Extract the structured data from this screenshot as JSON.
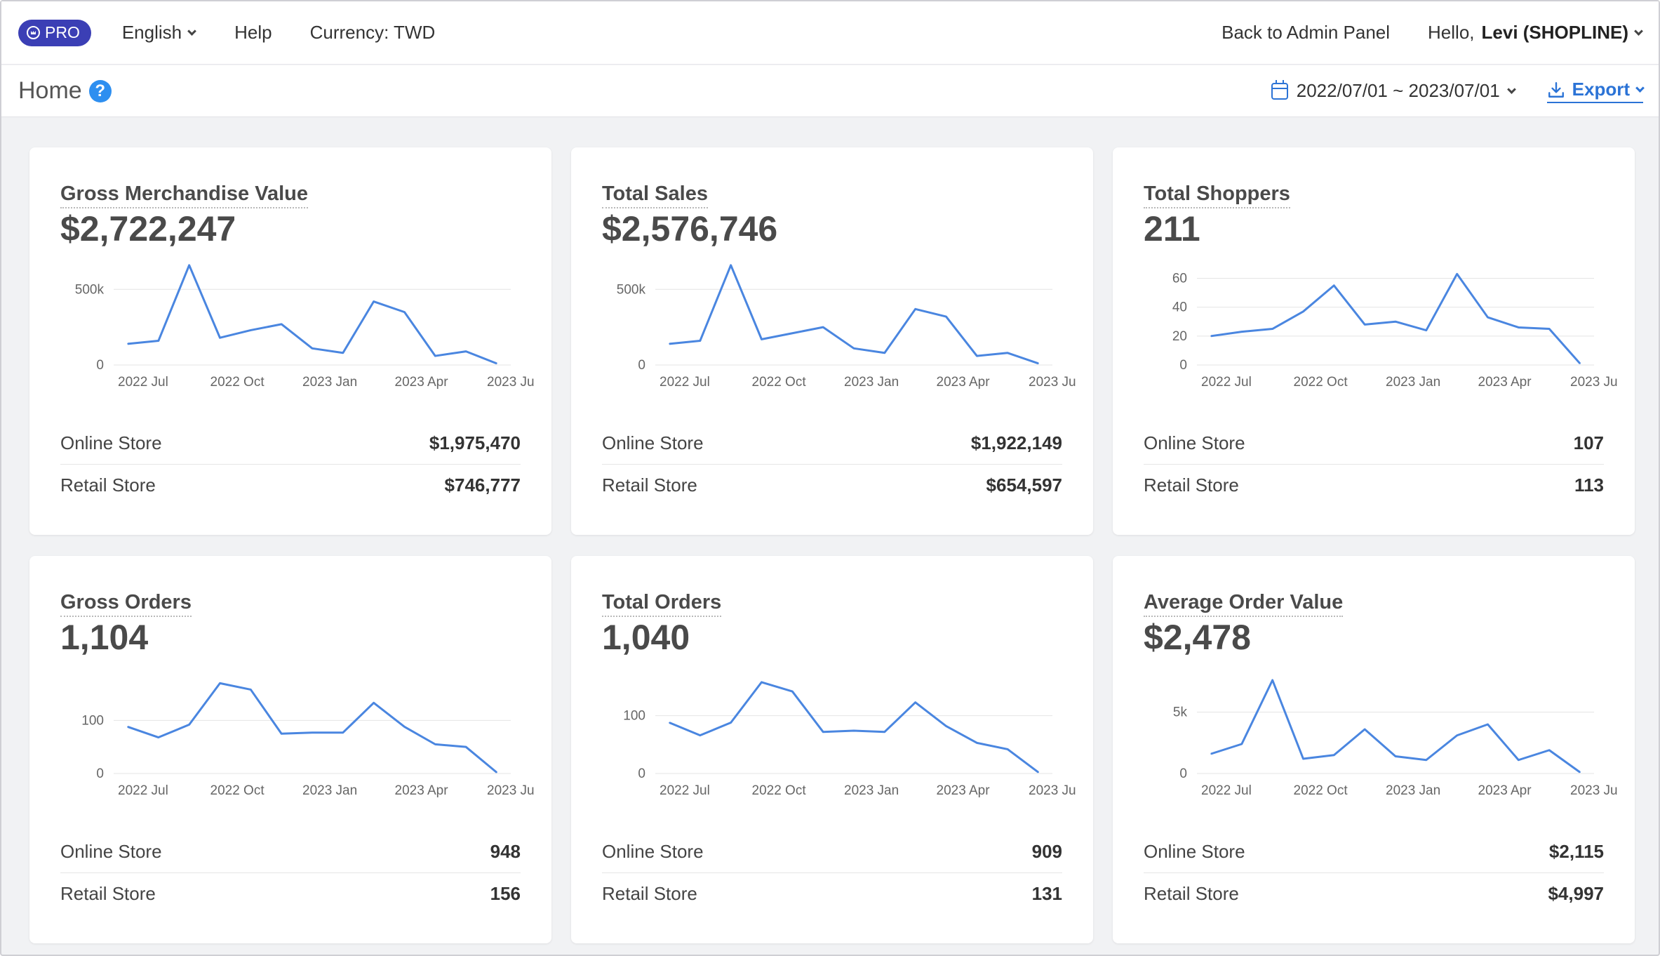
{
  "topbar": {
    "pro_label": "PRO",
    "language": "English",
    "help": "Help",
    "currency": "Currency: TWD",
    "back_admin": "Back to Admin Panel",
    "hello": "Hello,",
    "user": "Levi (SHOPLINE)"
  },
  "subbar": {
    "title": "Home",
    "help_glyph": "?",
    "date_range": "2022/07/01 ~ 2023/07/01",
    "export": "Export"
  },
  "colors": {
    "accent": "#2b73d6",
    "line": "#4a86e0",
    "pro": "#3b3fb5"
  },
  "x_ticks": [
    "2022 Jul",
    "2022 Oct",
    "2023 Jan",
    "2023 Apr",
    "2023 Ju"
  ],
  "cards": [
    {
      "title": "Gross Merchandise Value",
      "value": "$2,722,247",
      "rows": [
        {
          "label": "Online Store",
          "value": "$1,975,470"
        },
        {
          "label": "Retail Store",
          "value": "$746,777"
        }
      ],
      "chart_data": {
        "type": "line",
        "x": [
          "2022 Jul",
          "2022 Aug",
          "2022 Sep",
          "2022 Oct",
          "2022 Nov",
          "2022 Dec",
          "2023 Jan",
          "2023 Feb",
          "2023 Mar",
          "2023 Apr",
          "2023 May",
          "2023 Jun",
          "2023 Jul"
        ],
        "values": [
          140000,
          160000,
          660000,
          180000,
          230000,
          270000,
          110000,
          80000,
          420000,
          350000,
          60000,
          90000,
          10000
        ],
        "ylim": [
          0,
          650000
        ],
        "yticks": [
          {
            "v": 0,
            "t": "0"
          },
          {
            "v": 500000,
            "t": "500k"
          }
        ]
      }
    },
    {
      "title": "Total Sales",
      "value": "$2,576,746",
      "rows": [
        {
          "label": "Online Store",
          "value": "$1,922,149"
        },
        {
          "label": "Retail Store",
          "value": "$654,597"
        }
      ],
      "chart_data": {
        "type": "line",
        "x": [
          "2022 Jul",
          "2022 Aug",
          "2022 Sep",
          "2022 Oct",
          "2022 Nov",
          "2022 Dec",
          "2023 Jan",
          "2023 Feb",
          "2023 Mar",
          "2023 Apr",
          "2023 May",
          "2023 Jun",
          "2023 Jul"
        ],
        "values": [
          140000,
          160000,
          660000,
          170000,
          210000,
          250000,
          110000,
          80000,
          370000,
          320000,
          60000,
          80000,
          10000
        ],
        "ylim": [
          0,
          650000
        ],
        "yticks": [
          {
            "v": 0,
            "t": "0"
          },
          {
            "v": 500000,
            "t": "500k"
          }
        ]
      }
    },
    {
      "title": "Total Shoppers",
      "value": "211",
      "rows": [
        {
          "label": "Online Store",
          "value": "107"
        },
        {
          "label": "Retail Store",
          "value": "113"
        }
      ],
      "chart_data": {
        "type": "line",
        "x": [
          "2022 Jul",
          "2022 Aug",
          "2022 Sep",
          "2022 Oct",
          "2022 Nov",
          "2022 Dec",
          "2023 Jan",
          "2023 Feb",
          "2023 Mar",
          "2023 Apr",
          "2023 May",
          "2023 Jun",
          "2023 Jul"
        ],
        "values": [
          20,
          23,
          25,
          37,
          55,
          28,
          30,
          24,
          63,
          33,
          26,
          25,
          1
        ],
        "ylim": [
          0,
          68
        ],
        "yticks": [
          {
            "v": 0,
            "t": "0"
          },
          {
            "v": 20,
            "t": "20"
          },
          {
            "v": 40,
            "t": "40"
          },
          {
            "v": 60,
            "t": "60"
          }
        ]
      }
    },
    {
      "title": "Gross Orders",
      "value": "1,104",
      "rows": [
        {
          "label": "Online Store",
          "value": "948"
        },
        {
          "label": "Retail Store",
          "value": "156"
        }
      ],
      "chart_data": {
        "type": "line",
        "x": [
          "2022 Jul",
          "2022 Aug",
          "2022 Sep",
          "2022 Oct",
          "2022 Nov",
          "2022 Dec",
          "2023 Jan",
          "2023 Feb",
          "2023 Mar",
          "2023 Apr",
          "2023 May",
          "2023 Jun",
          "2023 Jul"
        ],
        "values": [
          88,
          68,
          92,
          170,
          158,
          75,
          77,
          77,
          133,
          88,
          55,
          50,
          2
        ],
        "ylim": [
          0,
          185
        ],
        "yticks": [
          {
            "v": 0,
            "t": "0"
          },
          {
            "v": 100,
            "t": "100"
          }
        ]
      }
    },
    {
      "title": "Total Orders",
      "value": "1,040",
      "rows": [
        {
          "label": "Online Store",
          "value": "909"
        },
        {
          "label": "Retail Store",
          "value": "131"
        }
      ],
      "chart_data": {
        "type": "line",
        "x": [
          "2022 Jul",
          "2022 Aug",
          "2022 Sep",
          "2022 Oct",
          "2022 Nov",
          "2022 Dec",
          "2023 Jan",
          "2023 Feb",
          "2023 Mar",
          "2023 Apr",
          "2023 May",
          "2023 Jun",
          "2023 Jul"
        ],
        "values": [
          88,
          66,
          88,
          158,
          142,
          72,
          74,
          72,
          123,
          82,
          53,
          42,
          2
        ],
        "ylim": [
          0,
          170
        ],
        "yticks": [
          {
            "v": 0,
            "t": "0"
          },
          {
            "v": 100,
            "t": "100"
          }
        ]
      }
    },
    {
      "title": "Average Order Value",
      "value": "$2,478",
      "rows": [
        {
          "label": "Online Store",
          "value": "$2,115"
        },
        {
          "label": "Retail Store",
          "value": "$4,997"
        }
      ],
      "chart_data": {
        "type": "line",
        "x": [
          "2022 Jul",
          "2022 Aug",
          "2022 Sep",
          "2022 Oct",
          "2022 Nov",
          "2022 Dec",
          "2023 Jan",
          "2023 Feb",
          "2023 Mar",
          "2023 Apr",
          "2023 May",
          "2023 Jun",
          "2023 Jul"
        ],
        "values": [
          1600,
          2400,
          7600,
          1200,
          1500,
          3600,
          1400,
          1100,
          3100,
          4000,
          1100,
          1900,
          100
        ],
        "ylim": [
          0,
          8000
        ],
        "yticks": [
          {
            "v": 0,
            "t": "0"
          },
          {
            "v": 5000,
            "t": "5k"
          }
        ]
      }
    }
  ]
}
